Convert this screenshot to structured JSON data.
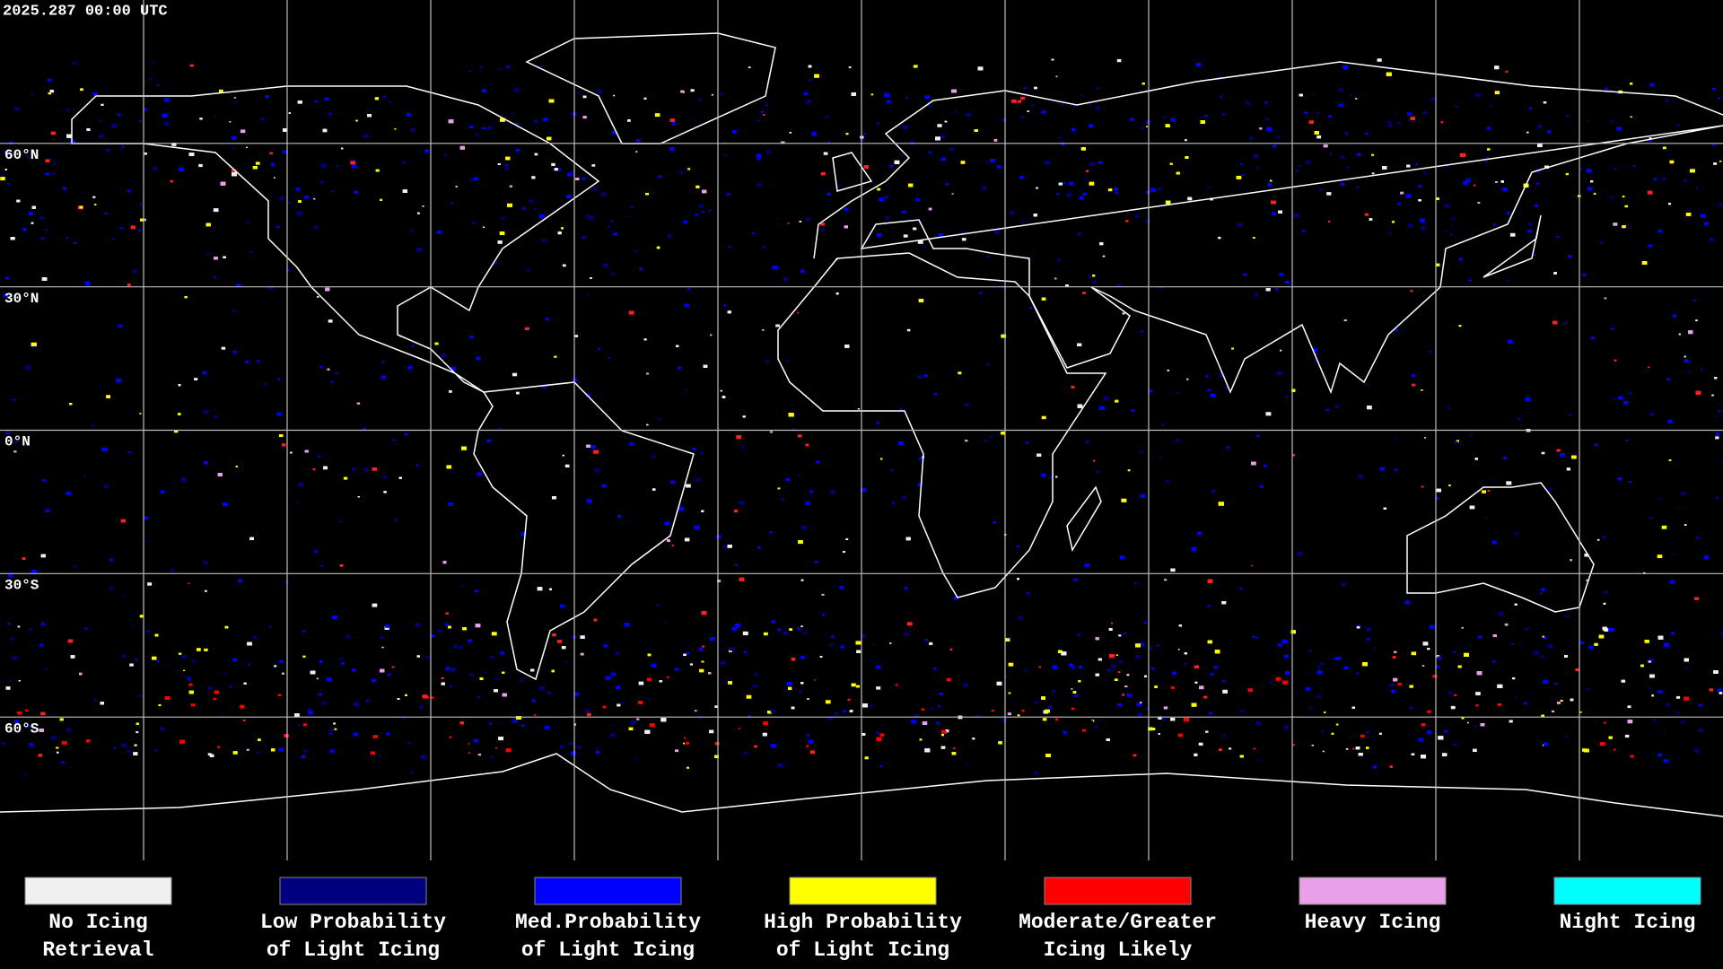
{
  "map": {
    "timestamp": "2025.287 00:00 UTC",
    "latitude_lines": [
      {
        "value": 60,
        "label": "60°N"
      },
      {
        "value": 30,
        "label": "30°N"
      },
      {
        "value": 0,
        "label": "0°N"
      },
      {
        "value": -30,
        "label": "30°S"
      },
      {
        "value": -60,
        "label": "60°S"
      }
    ],
    "legend": [
      {
        "label": [
          "No Icing",
          "Retrieval"
        ],
        "color": "#f0f0f0"
      },
      {
        "label": [
          "Low Probability",
          "of Light Icing"
        ],
        "color": "#000080"
      },
      {
        "label": [
          "Med.Probability",
          "of Light Icing"
        ],
        "color": "#0000ff"
      },
      {
        "label": [
          "High Probability",
          "of Light Icing"
        ],
        "color": "#ffff00"
      },
      {
        "label": [
          "Moderate/Greater",
          "Icing Likely"
        ],
        "color": "#ff0000"
      },
      {
        "label": [
          "Heavy Icing"
        ],
        "color": "#e8a0e8"
      },
      {
        "label": [
          "Night Icing"
        ],
        "color": "#00ffff"
      }
    ]
  }
}
